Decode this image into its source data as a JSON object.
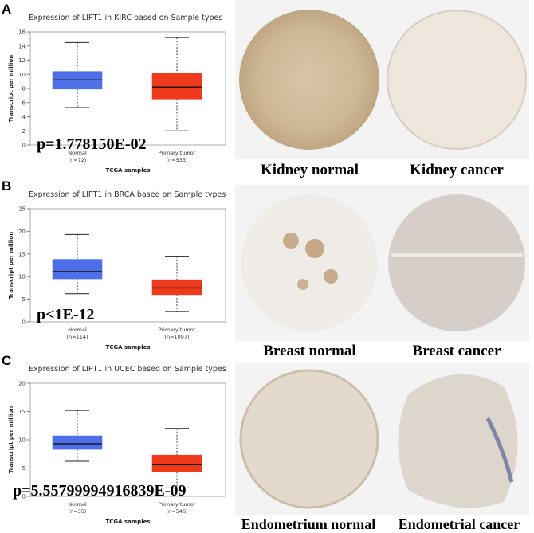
{
  "panels": [
    {
      "letter": "A",
      "chart_title": "Expression of LIPT1 in KIRC based on Sample types",
      "pvalue_text": "p=1.778150E-02",
      "tissues": [
        "Kidney normal",
        "Kidney cancer"
      ]
    },
    {
      "letter": "B",
      "chart_title": "Expression of LIPT1 in BRCA based on Sample types",
      "pvalue_text": "p<1E-12",
      "tissues": [
        "Breast normal",
        "Breast cancer"
      ]
    },
    {
      "letter": "C",
      "chart_title": "Expression of LIPT1 in UCEC based on Sample types",
      "pvalue_text": "p=5.55799994916839E-09",
      "tissues": [
        "Endometrium normal",
        "Endometrial cancer"
      ]
    }
  ],
  "colors": {
    "normal": "#4f6fe8",
    "tumor": "#f03a1e",
    "tissue_bg": "#f4f2ee",
    "stain": "#c9a883"
  },
  "chart_data": [
    {
      "type": "boxplot",
      "title": "Expression of LIPT1 in KIRC based on Sample types",
      "xlabel": "TCGA samples",
      "ylabel": "Transcript per million",
      "ylim": [
        0,
        16
      ],
      "yticks": [
        0,
        2,
        4,
        6,
        8,
        10,
        12,
        14,
        16
      ],
      "categories": [
        "Normal\n(n=72)",
        "Primary tumor\n(n=533)"
      ],
      "category_names": [
        "Normal",
        "Primary tumor"
      ],
      "category_n": [
        "(n=72)",
        "(n=533)"
      ],
      "boxes": [
        {
          "min": 5.3,
          "q1": 7.9,
          "median": 9.2,
          "q3": 10.4,
          "max": 14.5
        },
        {
          "min": 2.0,
          "q1": 6.5,
          "median": 8.2,
          "q3": 10.2,
          "max": 15.2
        }
      ]
    },
    {
      "type": "boxplot",
      "title": "Expression of LIPT1 in BRCA based on Sample types",
      "xlabel": "TCGA samples",
      "ylabel": "Transcript per million",
      "ylim": [
        0,
        25
      ],
      "yticks": [
        0,
        5,
        10,
        15,
        20,
        25
      ],
      "categories": [
        "Normal\n(n=114)",
        "Primary tumor\n(n=1097)"
      ],
      "category_names": [
        "Normal",
        "Primary tumor"
      ],
      "category_n": [
        "(n=114)",
        "(n=1097)"
      ],
      "boxes": [
        {
          "min": 6.2,
          "q1": 9.5,
          "median": 11.1,
          "q3": 13.8,
          "max": 19.3
        },
        {
          "min": 2.3,
          "q1": 6.0,
          "median": 7.5,
          "q3": 9.3,
          "max": 14.5
        }
      ]
    },
    {
      "type": "boxplot",
      "title": "Expression of LIPT1 in UCEC based on Sample types",
      "xlabel": "TCGA samples",
      "ylabel": "Transcript per million",
      "ylim": [
        0,
        20
      ],
      "yticks": [
        0,
        5,
        10,
        15,
        20
      ],
      "categories": [
        "Normal\n(n=35)",
        "Primary tumor\n(n=546)"
      ],
      "category_names": [
        "Normal",
        "Primary tumor"
      ],
      "category_n": [
        "(n=35)",
        "(n=546)"
      ],
      "boxes": [
        {
          "min": 6.2,
          "q1": 8.3,
          "median": 9.3,
          "q3": 10.7,
          "max": 15.2
        },
        {
          "min": 1.5,
          "q1": 4.3,
          "median": 5.6,
          "q3": 7.3,
          "max": 12.0
        }
      ]
    }
  ]
}
